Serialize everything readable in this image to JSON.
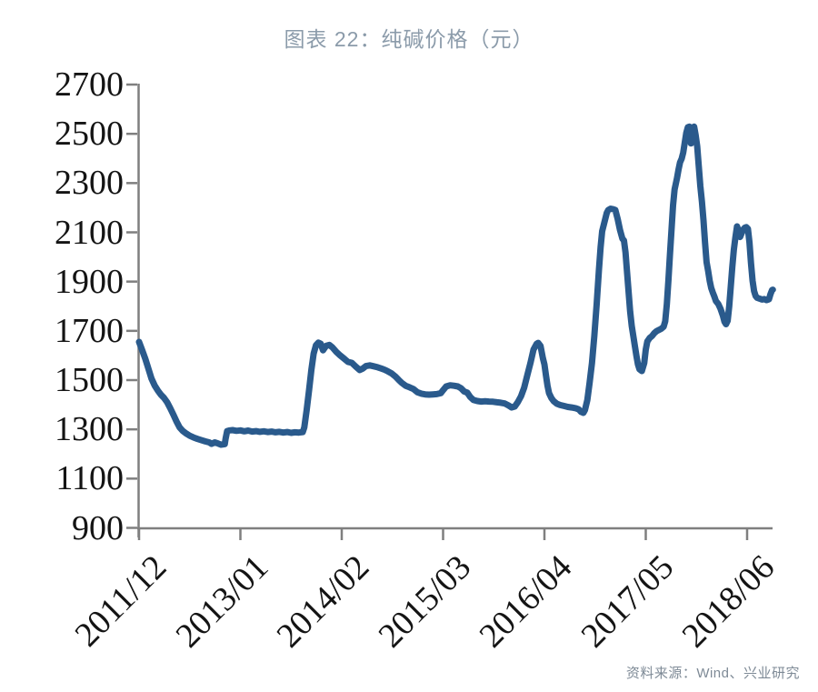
{
  "header": {
    "title": "图表 22：纯碱价格（元）",
    "title_color": "#8B9BAA"
  },
  "footer": {
    "source": "资料来源：Wind、兴业研究"
  },
  "chart_data": {
    "type": "line",
    "title": "图表 22：纯碱价格（元）",
    "series_name": "纯碱价格",
    "unit": "元",
    "line_color": "#2A5A8C",
    "axis_color": "#7F7F7F",
    "label_color": "#141414",
    "grid": false,
    "legend": "none",
    "ylim": [
      900,
      2700
    ],
    "y_ticks": [
      2700,
      2500,
      2300,
      2100,
      1900,
      1700,
      1500,
      1300,
      1100,
      900
    ],
    "x_tick_labels": [
      "2011/12",
      "2013/01",
      "2014/02",
      "2015/03",
      "2016/04",
      "2017/05",
      "2018/06"
    ],
    "x_tick_months": [
      0,
      13,
      26,
      39,
      52,
      65,
      78
    ],
    "x_range_months": [
      0,
      81.3
    ],
    "points": [
      [
        0,
        1655
      ],
      [
        0.4,
        1622
      ],
      [
        0.8,
        1586
      ],
      [
        1.2,
        1546
      ],
      [
        1.6,
        1506
      ],
      [
        2,
        1478
      ],
      [
        2.4,
        1458
      ],
      [
        2.8,
        1441
      ],
      [
        3.2,
        1428
      ],
      [
        3.6,
        1410
      ],
      [
        4,
        1386
      ],
      [
        4.4,
        1360
      ],
      [
        4.8,
        1332
      ],
      [
        5.2,
        1308
      ],
      [
        5.6,
        1294
      ],
      [
        6,
        1284
      ],
      [
        6.5,
        1274
      ],
      [
        7,
        1267
      ],
      [
        7.5,
        1261
      ],
      [
        8,
        1256
      ],
      [
        8.5,
        1251
      ],
      [
        9,
        1247
      ],
      [
        9.3,
        1241
      ],
      [
        9.7,
        1247
      ],
      [
        10.1,
        1243
      ],
      [
        10.5,
        1238
      ],
      [
        11,
        1240
      ],
      [
        11.1,
        1262
      ],
      [
        11.3,
        1293
      ],
      [
        11.6,
        1296
      ],
      [
        12,
        1297
      ],
      [
        12.5,
        1294
      ],
      [
        13,
        1296
      ],
      [
        13.5,
        1292
      ],
      [
        14,
        1295
      ],
      [
        14.5,
        1291
      ],
      [
        15,
        1293
      ],
      [
        15.5,
        1290
      ],
      [
        16,
        1292
      ],
      [
        16.5,
        1289
      ],
      [
        17,
        1291
      ],
      [
        17.5,
        1288
      ],
      [
        18,
        1290
      ],
      [
        18.5,
        1287
      ],
      [
        19,
        1289
      ],
      [
        19.5,
        1286
      ],
      [
        20,
        1288
      ],
      [
        20.5,
        1287
      ],
      [
        21,
        1289
      ],
      [
        21.2,
        1308
      ],
      [
        21.5,
        1378
      ],
      [
        21.8,
        1458
      ],
      [
        22.1,
        1542
      ],
      [
        22.4,
        1608
      ],
      [
        22.7,
        1642
      ],
      [
        23,
        1652
      ],
      [
        23.3,
        1648
      ],
      [
        23.6,
        1621
      ],
      [
        24,
        1639
      ],
      [
        24.4,
        1643
      ],
      [
        24.8,
        1633
      ],
      [
        25.3,
        1615
      ],
      [
        25.8,
        1600
      ],
      [
        26.3,
        1587
      ],
      [
        26.8,
        1574
      ],
      [
        27.3,
        1570
      ],
      [
        27.8,
        1555
      ],
      [
        28.3,
        1541
      ],
      [
        28.7,
        1547
      ],
      [
        29.1,
        1557
      ],
      [
        29.6,
        1560
      ],
      [
        30.1,
        1556
      ],
      [
        30.6,
        1552
      ],
      [
        31.1,
        1547
      ],
      [
        31.5,
        1542
      ],
      [
        31.9,
        1536
      ],
      [
        32.4,
        1527
      ],
      [
        32.9,
        1514
      ],
      [
        33.3,
        1501
      ],
      [
        33.7,
        1489
      ],
      [
        34.2,
        1477
      ],
      [
        34.7,
        1471
      ],
      [
        35.2,
        1464
      ],
      [
        35.7,
        1451
      ],
      [
        36.2,
        1445
      ],
      [
        36.7,
        1442
      ],
      [
        37.2,
        1441
      ],
      [
        37.7,
        1442
      ],
      [
        38.2,
        1443
      ],
      [
        38.7,
        1447
      ],
      [
        39,
        1459
      ],
      [
        39.4,
        1474
      ],
      [
        39.9,
        1479
      ],
      [
        40.4,
        1477
      ],
      [
        40.9,
        1474
      ],
      [
        41.3,
        1467
      ],
      [
        41.7,
        1454
      ],
      [
        42.1,
        1449
      ],
      [
        42.5,
        1431
      ],
      [
        42.9,
        1419
      ],
      [
        43.4,
        1415
      ],
      [
        43.9,
        1413
      ],
      [
        44.4,
        1414
      ],
      [
        44.9,
        1413
      ],
      [
        45.4,
        1412
      ],
      [
        45.9,
        1410
      ],
      [
        46.4,
        1408
      ],
      [
        46.9,
        1405
      ],
      [
        47.4,
        1397
      ],
      [
        47.8,
        1389
      ],
      [
        48.2,
        1393
      ],
      [
        48.6,
        1411
      ],
      [
        49,
        1435
      ],
      [
        49.4,
        1469
      ],
      [
        49.8,
        1519
      ],
      [
        50.2,
        1569
      ],
      [
        50.6,
        1624
      ],
      [
        51,
        1647
      ],
      [
        51.2,
        1651
      ],
      [
        51.5,
        1639
      ],
      [
        51.8,
        1589
      ],
      [
        52,
        1564
      ],
      [
        52.2,
        1519
      ],
      [
        52.4,
        1477
      ],
      [
        52.6,
        1447
      ],
      [
        52.9,
        1427
      ],
      [
        53.2,
        1414
      ],
      [
        53.6,
        1404
      ],
      [
        54,
        1399
      ],
      [
        54.5,
        1395
      ],
      [
        55,
        1391
      ],
      [
        55.5,
        1389
      ],
      [
        56,
        1386
      ],
      [
        56.4,
        1381
      ],
      [
        56.7,
        1371
      ],
      [
        57,
        1367
      ],
      [
        57.2,
        1379
      ],
      [
        57.5,
        1419
      ],
      [
        57.8,
        1489
      ],
      [
        58.1,
        1569
      ],
      [
        58.4,
        1679
      ],
      [
        58.7,
        1809
      ],
      [
        59,
        1949
      ],
      [
        59.2,
        2039
      ],
      [
        59.4,
        2104
      ],
      [
        59.6,
        2129
      ],
      [
        59.8,
        2154
      ],
      [
        60,
        2179
      ],
      [
        60.2,
        2191
      ],
      [
        60.5,
        2196
      ],
      [
        60.8,
        2194
      ],
      [
        61.1,
        2191
      ],
      [
        61.4,
        2154
      ],
      [
        61.7,
        2109
      ],
      [
        62,
        2074
      ],
      [
        62.2,
        2067
      ],
      [
        62.4,
        2019
      ],
      [
        62.6,
        1939
      ],
      [
        62.8,
        1859
      ],
      [
        63,
        1779
      ],
      [
        63.2,
        1719
      ],
      [
        63.4,
        1679
      ],
      [
        63.6,
        1639
      ],
      [
        63.8,
        1599
      ],
      [
        64,
        1564
      ],
      [
        64.2,
        1544
      ],
      [
        64.5,
        1537
      ],
      [
        64.8,
        1569
      ],
      [
        65,
        1624
      ],
      [
        65.2,
        1657
      ],
      [
        65.5,
        1671
      ],
      [
        65.8,
        1679
      ],
      [
        66.1,
        1691
      ],
      [
        66.4,
        1699
      ],
      [
        66.7,
        1704
      ],
      [
        67,
        1709
      ],
      [
        67.3,
        1717
      ],
      [
        67.5,
        1739
      ],
      [
        67.7,
        1809
      ],
      [
        67.9,
        1904
      ],
      [
        68.1,
        2009
      ],
      [
        68.3,
        2109
      ],
      [
        68.5,
        2209
      ],
      [
        68.7,
        2274
      ],
      [
        69,
        2319
      ],
      [
        69.2,
        2354
      ],
      [
        69.4,
        2384
      ],
      [
        69.6,
        2399
      ],
      [
        69.8,
        2424
      ],
      [
        70,
        2464
      ],
      [
        70.2,
        2504
      ],
      [
        70.4,
        2527
      ],
      [
        70.6,
        2529
      ],
      [
        70.8,
        2461
      ],
      [
        71,
        2519
      ],
      [
        71.2,
        2529
      ],
      [
        71.4,
        2494
      ],
      [
        71.6,
        2449
      ],
      [
        71.8,
        2369
      ],
      [
        72,
        2289
      ],
      [
        72.2,
        2224
      ],
      [
        72.4,
        2149
      ],
      [
        72.6,
        2059
      ],
      [
        72.8,
        1979
      ],
      [
        73,
        1944
      ],
      [
        73.2,
        1904
      ],
      [
        73.4,
        1874
      ],
      [
        73.6,
        1855
      ],
      [
        73.8,
        1839
      ],
      [
        74,
        1821
      ],
      [
        74.3,
        1809
      ],
      [
        74.6,
        1789
      ],
      [
        74.9,
        1761
      ],
      [
        75.1,
        1737
      ],
      [
        75.3,
        1727
      ],
      [
        75.5,
        1741
      ],
      [
        75.7,
        1799
      ],
      [
        75.9,
        1879
      ],
      [
        76.1,
        1959
      ],
      [
        76.3,
        2029
      ],
      [
        76.5,
        2079
      ],
      [
        76.7,
        2124
      ],
      [
        76.9,
        2107
      ],
      [
        77.1,
        2081
      ],
      [
        77.3,
        2097
      ],
      [
        77.5,
        2111
      ],
      [
        77.7,
        2119
      ],
      [
        77.9,
        2121
      ],
      [
        78.1,
        2114
      ],
      [
        78.3,
        2059
      ],
      [
        78.5,
        1974
      ],
      [
        78.7,
        1904
      ],
      [
        78.9,
        1861
      ],
      [
        79.1,
        1841
      ],
      [
        79.3,
        1834
      ],
      [
        79.6,
        1831
      ],
      [
        79.9,
        1827
      ],
      [
        80.2,
        1829
      ],
      [
        80.5,
        1825
      ],
      [
        80.8,
        1828
      ],
      [
        81,
        1849
      ],
      [
        81.2,
        1865
      ],
      [
        81.3,
        1867
      ]
    ]
  }
}
